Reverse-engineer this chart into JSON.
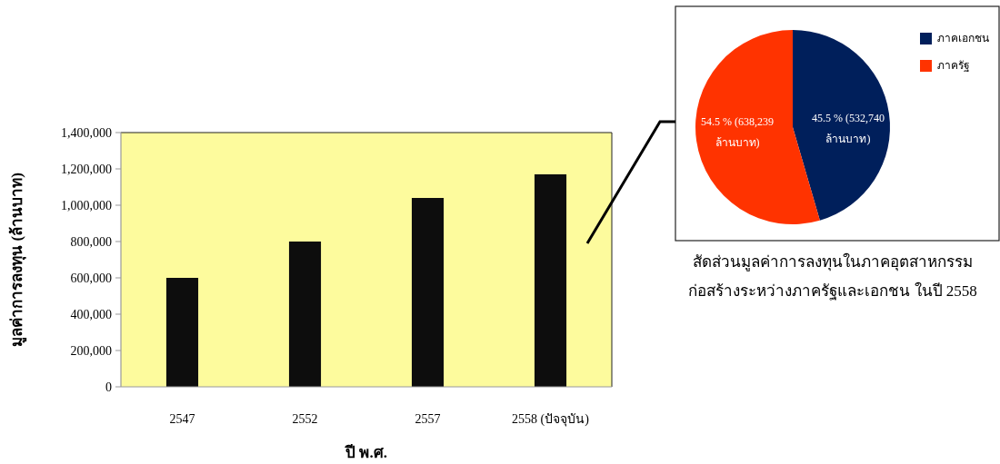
{
  "chart_data": [
    {
      "type": "bar",
      "xlabel": "ปี พ.ศ.",
      "ylabel": "มูลค่าการลงทุน (ล้านบาท)",
      "categories": [
        "2547",
        "2552",
        "2557",
        "2558 (ปัจจุบัน)"
      ],
      "values": [
        600000,
        800000,
        1040000,
        1170000
      ],
      "color": "#0d0d0d",
      "ylim": [
        0,
        1400000
      ],
      "yticks": [
        {
          "value": 0,
          "label": "0"
        },
        {
          "value": 200000,
          "label": "200,000"
        },
        {
          "value": 400000,
          "label": "400,000"
        },
        {
          "value": 600000,
          "label": "600,000"
        },
        {
          "value": 800000,
          "label": "800,000"
        },
        {
          "value": 1000000,
          "label": "1,000,000"
        },
        {
          "value": 1200000,
          "label": "1,200,000"
        },
        {
          "value": 1400000,
          "label": "1,400,000"
        }
      ],
      "grid": false
    },
    {
      "type": "pie",
      "title": "สัดส่วนมูลค่าการลงทุนในภาคอุตสาหกรรม\nก่อสร้างระหว่างภาครัฐและเอกชน ในปี 2558",
      "categories": [
        "ภาคเอกชน",
        "ภาครัฐ"
      ],
      "values": [
        532740,
        638239
      ],
      "colors": [
        "#001f5b",
        "#ff3300"
      ],
      "value_labels": [
        "45.5 % (532,740 ล้านบาท)",
        "54.5 % (638,239 ล้านบาท)"
      ],
      "legend": "top right"
    }
  ]
}
